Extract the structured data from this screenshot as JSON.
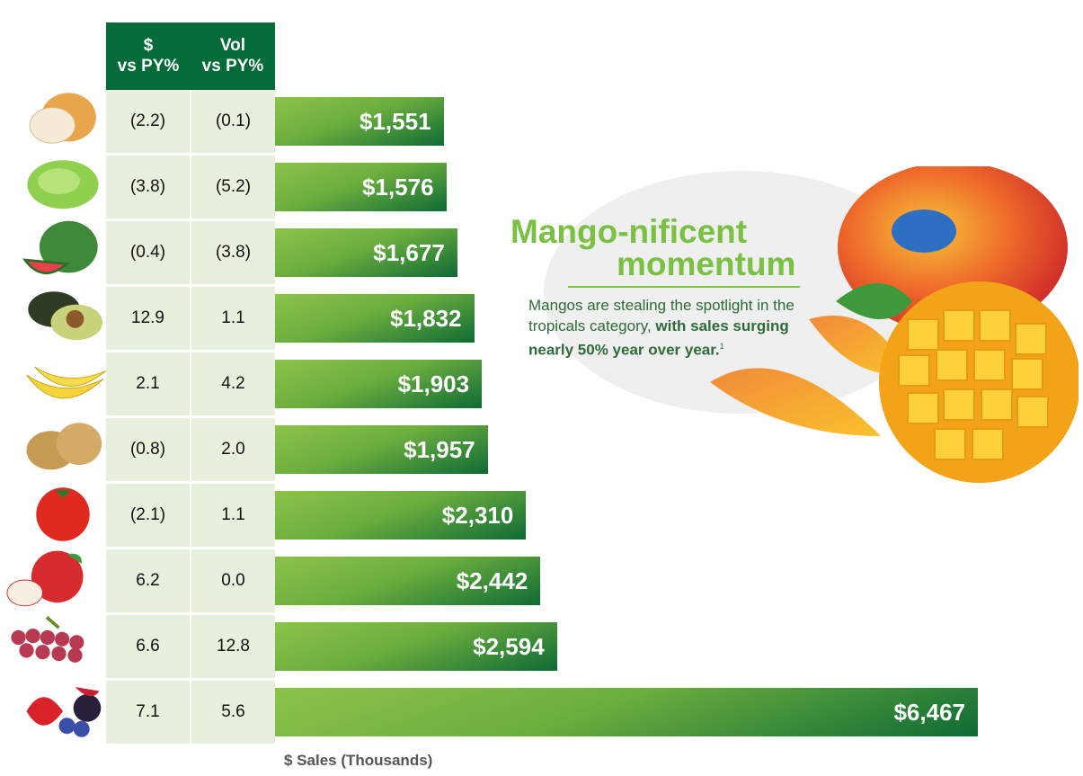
{
  "table": {
    "headers": [
      "$\nvs PY%",
      "Vol\nvs PY%"
    ],
    "rows": [
      [
        "(2.2)",
        "(0.1)"
      ],
      [
        "(3.8)",
        "(5.2)"
      ],
      [
        "(0.4)",
        "(3.8)"
      ],
      [
        "12.9",
        "1.1"
      ],
      [
        "2.1",
        "4.2"
      ],
      [
        "(0.8)",
        "2.0"
      ],
      [
        "(2.1)",
        "1.1"
      ],
      [
        "6.2",
        "0.0"
      ],
      [
        "6.6",
        "12.8"
      ],
      [
        "7.1",
        "5.6"
      ]
    ]
  },
  "chart_data": {
    "type": "bar",
    "orientation": "horizontal",
    "icons": [
      "onion-icon",
      "lettuce-icon",
      "watermelon-icon",
      "avocado-icon",
      "banana-icon",
      "potato-icon",
      "tomato-icon",
      "apple-icon",
      "grapes-icon",
      "berries-icon"
    ],
    "values": [
      1551,
      1576,
      1677,
      1832,
      1903,
      1957,
      2310,
      2442,
      2594,
      6467
    ],
    "labels": [
      "$1,551",
      "$1,576",
      "$1,677",
      "$1,832",
      "$1,903",
      "$1,957",
      "$2,310",
      "$2,442",
      "$2,594",
      "$6,467"
    ],
    "xlabel": "$ Sales (Thousands)",
    "grid": false,
    "colors": {
      "bar_light": "#8bc34a",
      "bar_dark": "#0e6b35",
      "header": "#036b37",
      "cell": "#e7f0dc"
    }
  },
  "callout": {
    "title_line1": "Mango-nificent",
    "title_line2": "momentum",
    "body_plain": "Mangos are stealing the spotlight in the tropicals category, ",
    "body_bold": "with sales surging nearly 50% year over year.",
    "footnote": "1",
    "title_color": "#7ac143"
  }
}
